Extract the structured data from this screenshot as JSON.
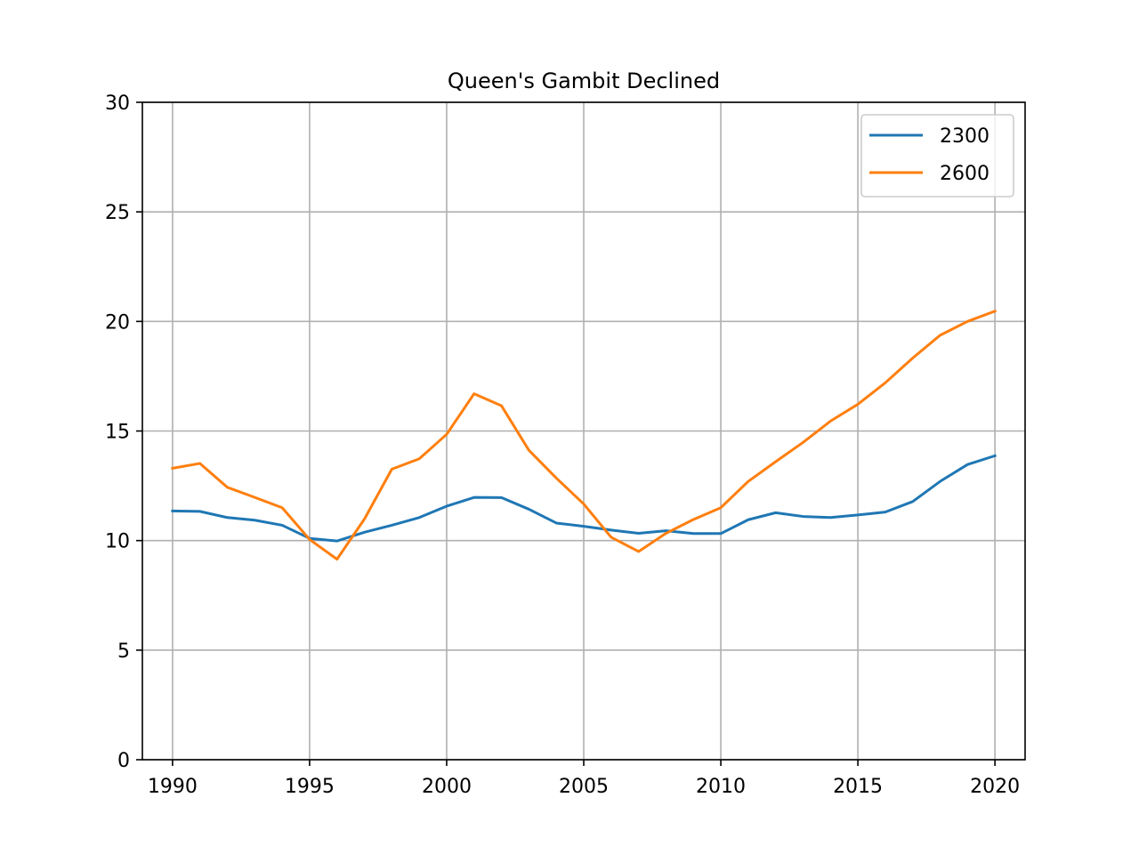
{
  "chart_data": {
    "type": "line",
    "title": "Queen's Gambit Declined",
    "xlabel": "",
    "ylabel": "",
    "xlim": [
      1988.9,
      2021.1
    ],
    "ylim": [
      0,
      30
    ],
    "x_ticks": [
      1990,
      1995,
      2000,
      2005,
      2010,
      2015,
      2020
    ],
    "y_ticks": [
      0,
      5,
      10,
      15,
      20,
      25,
      30
    ],
    "grid": true,
    "legend_position": "top-right",
    "x": [
      1990,
      1991,
      1992,
      1993,
      1994,
      1995,
      1996,
      1997,
      1998,
      1999,
      2000,
      2001,
      2002,
      2003,
      2004,
      2005,
      2006,
      2007,
      2008,
      2009,
      2010,
      2011,
      2012,
      2013,
      2014,
      2015,
      2016,
      2017,
      2018,
      2019,
      2020
    ],
    "series": [
      {
        "name": "2300",
        "color": "#1f77b4",
        "values": [
          11.35,
          11.33,
          11.05,
          10.93,
          10.7,
          10.1,
          9.98,
          10.38,
          10.7,
          11.05,
          11.57,
          11.97,
          11.96,
          11.43,
          10.8,
          10.65,
          10.48,
          10.33,
          10.45,
          10.32,
          10.32,
          10.95,
          11.27,
          11.1,
          11.05,
          11.17,
          11.3,
          11.78,
          12.7,
          13.47,
          13.87
        ]
      },
      {
        "name": "2600",
        "color": "#ff7f0e",
        "values": [
          13.3,
          13.52,
          12.43,
          11.97,
          11.5,
          10.05,
          9.15,
          10.98,
          13.26,
          13.73,
          14.85,
          16.7,
          16.15,
          14.12,
          12.85,
          11.67,
          10.15,
          9.5,
          10.33,
          10.96,
          11.5,
          12.7,
          13.6,
          14.48,
          15.45,
          16.22,
          17.2,
          18.33,
          19.37,
          20.0,
          20.47
        ]
      }
    ]
  }
}
